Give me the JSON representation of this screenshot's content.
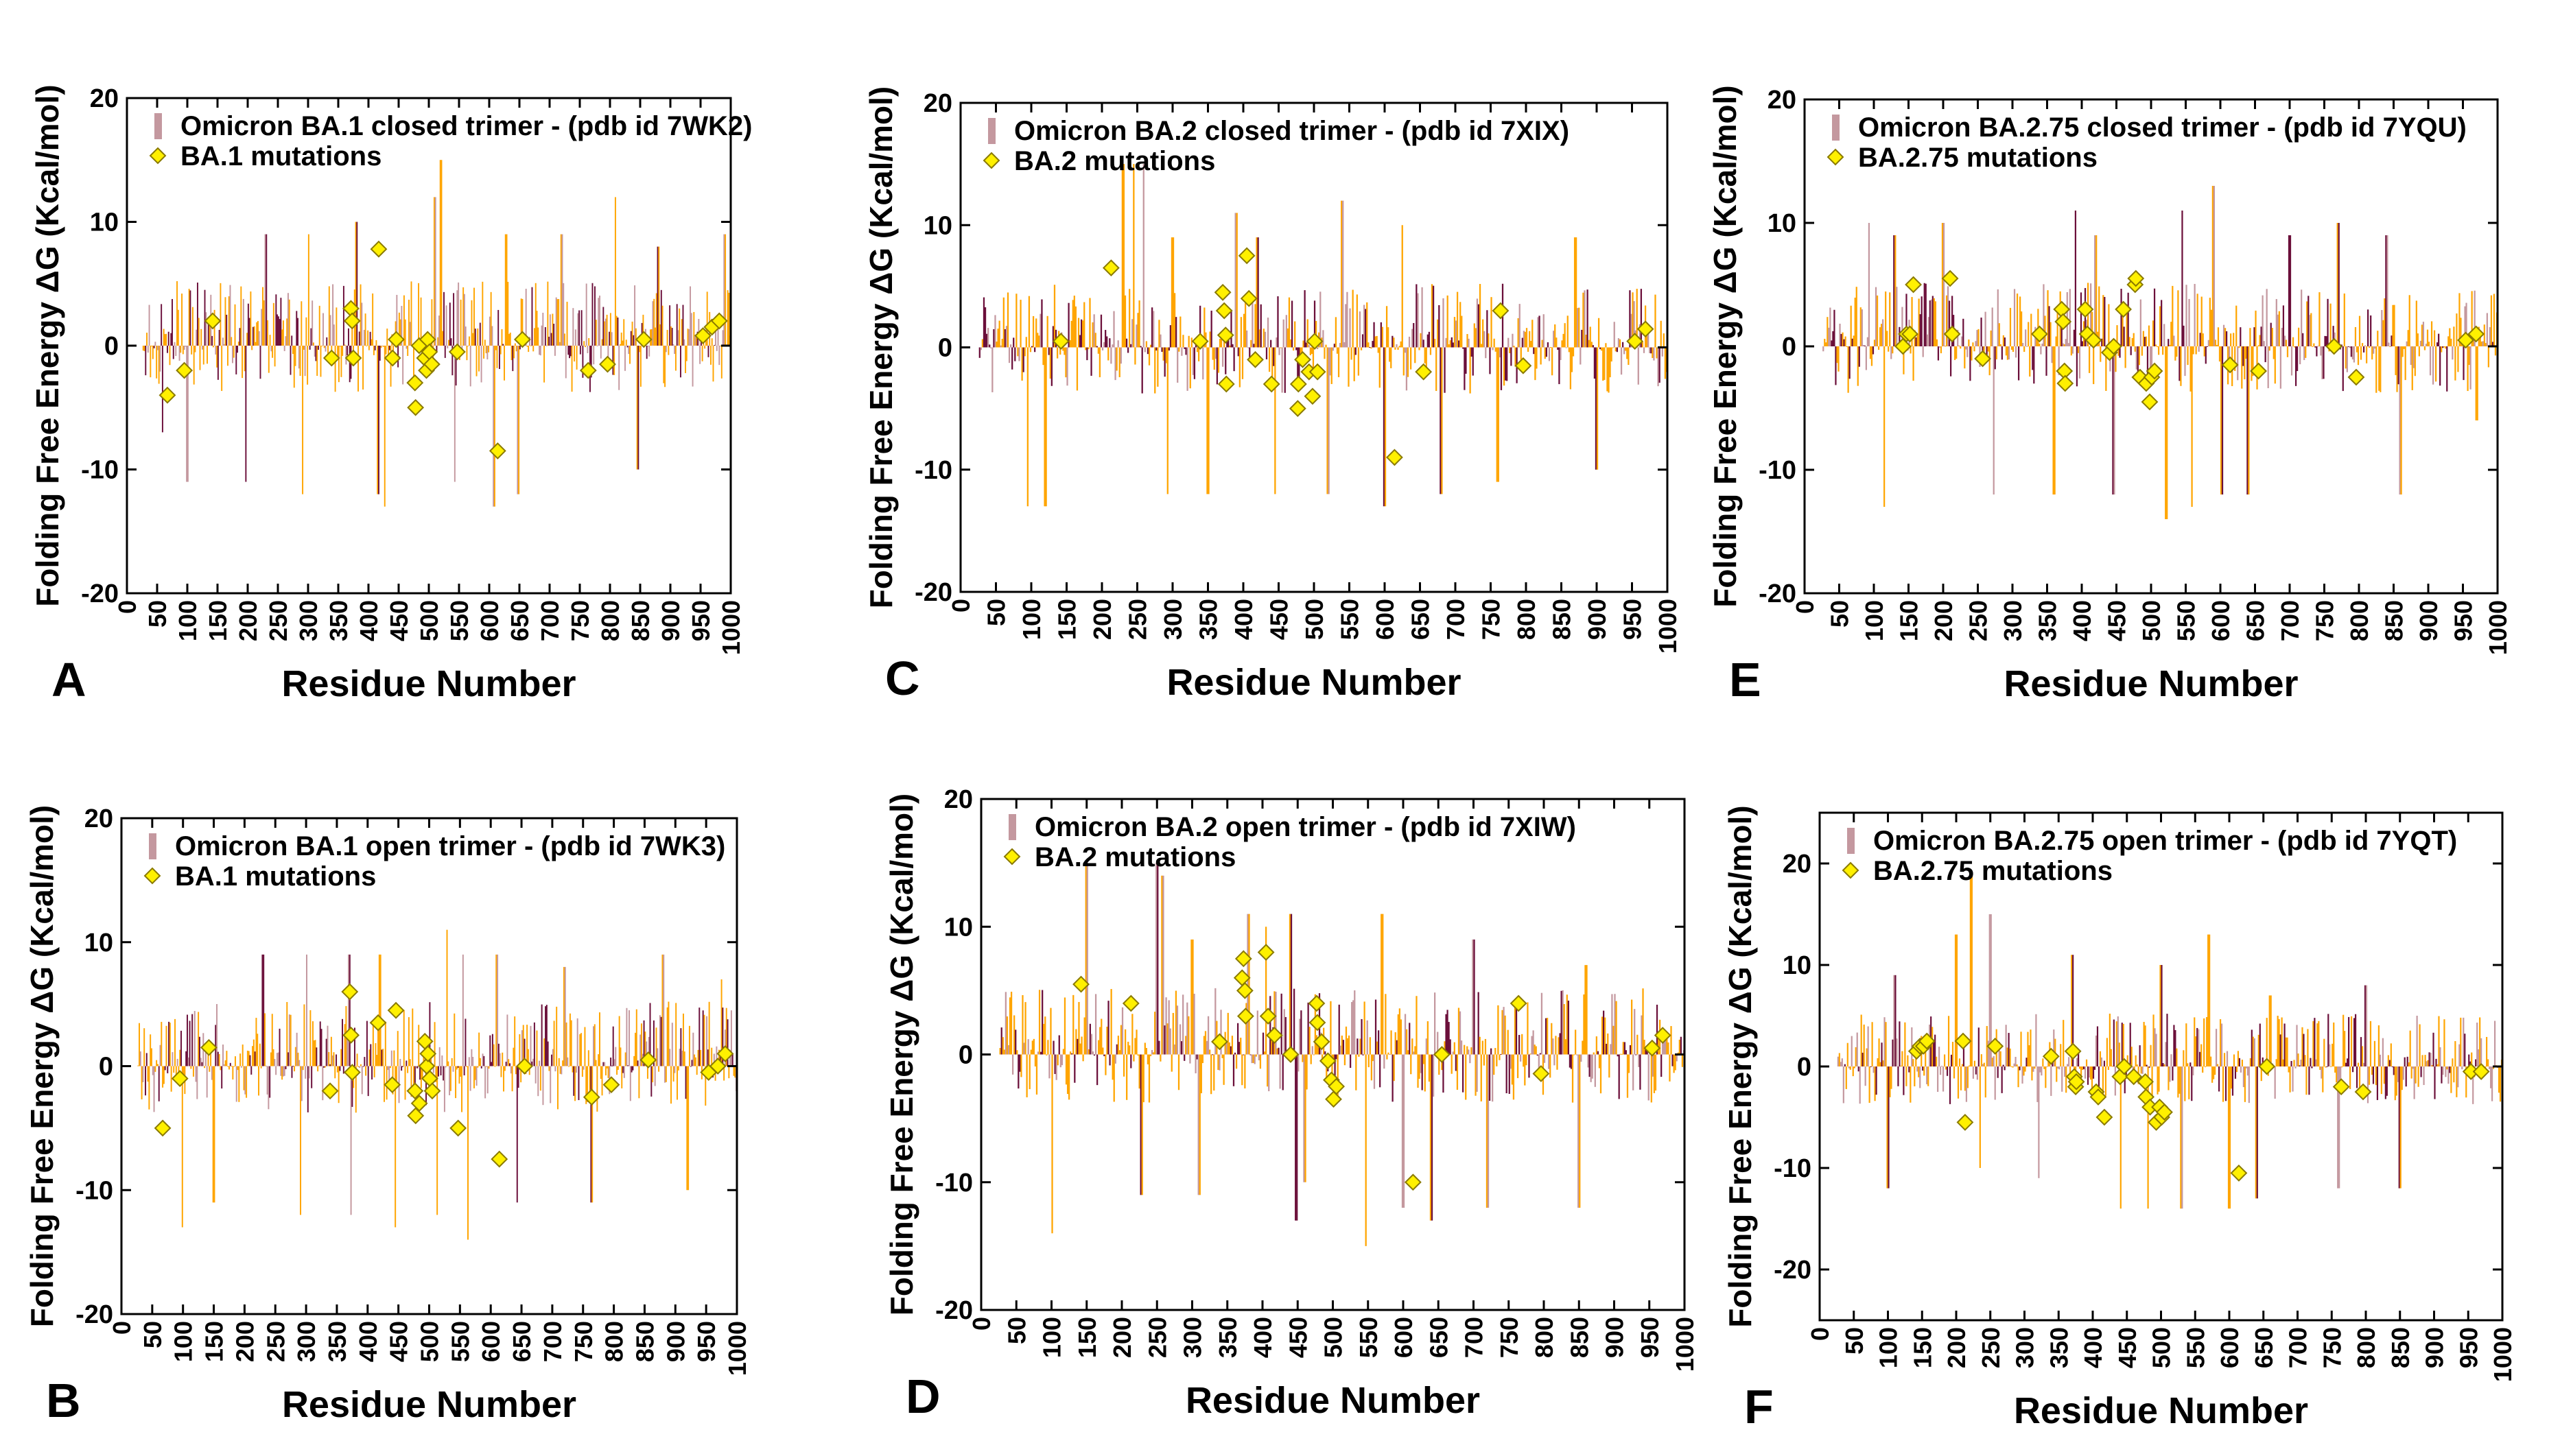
{
  "figure": {
    "xlabel": "Residue Number",
    "ylabel": "Folding  Free Energy ΔG (Kcal/mol)",
    "xticks": [
      "0",
      "50",
      "100",
      "150",
      "200",
      "250",
      "300",
      "350",
      "400",
      "450",
      "500",
      "550",
      "600",
      "650",
      "700",
      "750",
      "800",
      "850",
      "900",
      "950",
      "1000"
    ],
    "yticks": [
      "20",
      "10",
      "0",
      "-10",
      "-20"
    ],
    "colors": {
      "series": "#C4989F",
      "stroke": "#FFA500",
      "dark": "#6B0F3A",
      "marker": "#FFF000",
      "marker_edge": "#8A7A00",
      "axes": "#000000"
    }
  },
  "chart_data": [
    {
      "panel_letter": "A",
      "type": "bar",
      "title": "Omicron BA.1 closed trimer - (pdb id 7WK2)",
      "series": [
        {
          "name": "Omicron BA.1 closed trimer - (pdb id 7WK2)",
          "kind": "bar",
          "x_range": [
            27,
            1000
          ],
          "peaks": [
            [
              230,
              9
            ],
            [
              301,
              9
            ],
            [
              380,
              10
            ],
            [
              510,
              12
            ],
            [
              520,
              15
            ],
            [
              628,
              9
            ],
            [
              720,
              9
            ],
            [
              809,
              12
            ],
            [
              880,
              8
            ],
            [
              990,
              9
            ]
          ],
          "troughs": [
            [
              59,
              -7
            ],
            [
              100,
              -11
            ],
            [
              197,
              -11
            ],
            [
              291,
              -12
            ],
            [
              416,
              -12
            ],
            [
              427,
              -13
            ],
            [
              543,
              -11
            ],
            [
              608,
              -13
            ],
            [
              648,
              -12
            ],
            [
              846,
              -10
            ]
          ]
        },
        {
          "name": "BA.1 mutations",
          "kind": "marker",
          "x": [
            67,
            95,
            142,
            339,
            371,
            373,
            375,
            417,
            440,
            446,
            477,
            478,
            484,
            493,
            496,
            498,
            501,
            505,
            547,
            614,
            655,
            764,
            796,
            856,
            954,
            969,
            981
          ],
          "y": [
            -4,
            -2,
            2,
            -1,
            3,
            2,
            -1,
            7.8,
            -1,
            0.5,
            -3,
            -5,
            0,
            -1,
            -2,
            0.5,
            -0.5,
            -1.5,
            -0.5,
            -8.5,
            0.5,
            -2,
            -1.5,
            0.5,
            0.8,
            1.5,
            2
          ]
        }
      ],
      "xlabel": "Residue Number",
      "ylabel": "Folding  Free Energy ΔG (Kcal/mol)",
      "xlim": [
        0,
        1000
      ],
      "ylim": [
        -20,
        20
      ],
      "legend": "top-left"
    },
    {
      "panel_letter": "C",
      "type": "bar",
      "title": "Omicron BA.2 closed trimer - (pdb id 7XIX)",
      "series": [
        {
          "name": "Omicron BA.2 closed trimer - (pdb id 7XIX)",
          "kind": "bar",
          "x_range": [
            27,
            1000
          ],
          "peaks": [
            [
              230,
              15
            ],
            [
              245,
              15
            ],
            [
              259,
              15
            ],
            [
              300,
              9
            ],
            [
              390,
              11
            ],
            [
              420,
              9
            ],
            [
              520,
              12
            ],
            [
              540,
              12
            ],
            [
              625,
              10
            ],
            [
              870,
              9
            ]
          ],
          "troughs": [
            [
              95,
              -13
            ],
            [
              120,
              -13
            ],
            [
              293,
              -12
            ],
            [
              350,
              -12
            ],
            [
              445,
              -12
            ],
            [
              520,
              -12
            ],
            [
              600,
              -13
            ],
            [
              680,
              -12
            ],
            [
              760,
              -11
            ],
            [
              900,
              -10
            ]
          ]
        },
        {
          "name": "BA.2 mutations",
          "kind": "marker",
          "x": [
            142,
            213,
            339,
            371,
            373,
            375,
            376,
            405,
            408,
            417,
            440,
            477,
            478,
            484,
            493,
            498,
            501,
            505,
            614,
            655,
            764,
            796,
            954,
            969
          ],
          "y": [
            0.5,
            6.5,
            0.5,
            4.5,
            3,
            1,
            -3,
            7.5,
            4,
            -1,
            -3,
            -5,
            -3,
            -1,
            -2,
            -4,
            0.5,
            -2,
            -9,
            -2,
            3,
            -1.5,
            0.5,
            1.5
          ]
        }
      ],
      "xlabel": "Residue Number",
      "ylabel": "Folding  Free Energy ΔG (Kcal/mol)",
      "xlim": [
        0,
        1000
      ],
      "ylim": [
        -20,
        20
      ],
      "legend": "top-left"
    },
    {
      "panel_letter": "E",
      "type": "bar",
      "title": "Omicron BA.2.75 closed trimer - (pdb id 7YQU)",
      "series": [
        {
          "name": "Omicron BA.2.75 closed trimer - (pdb id 7YQU)",
          "kind": "bar",
          "x_range": [
            27,
            1000
          ],
          "peaks": [
            [
              93,
              10
            ],
            [
              130,
              9
            ],
            [
              200,
              10
            ],
            [
              391,
              11
            ],
            [
              420,
              9
            ],
            [
              545,
              11
            ],
            [
              590,
              13
            ],
            [
              700,
              9
            ],
            [
              770,
              10
            ],
            [
              840,
              9
            ]
          ],
          "troughs": [
            [
              115,
              -13
            ],
            [
              273,
              -12
            ],
            [
              360,
              -12
            ],
            [
              446,
              -12
            ],
            [
              522,
              -14
            ],
            [
              559,
              -13
            ],
            [
              602,
              -12
            ],
            [
              640,
              -12
            ],
            [
              860,
              -12
            ],
            [
              970,
              -6
            ]
          ]
        },
        {
          "name": "BA.2.75 mutations",
          "kind": "marker",
          "x": [
            142,
            147,
            152,
            157,
            210,
            213,
            257,
            339,
            371,
            373,
            375,
            376,
            405,
            408,
            417,
            440,
            446,
            460,
            477,
            478,
            484,
            493,
            498,
            501,
            505,
            614,
            655,
            764,
            796,
            954,
            969
          ],
          "y": [
            0,
            1,
            1,
            5,
            5.5,
            1,
            -1,
            1,
            3,
            2,
            -2,
            -3,
            3,
            1,
            0.5,
            -0.5,
            0,
            3,
            5,
            5.5,
            -2.5,
            -3,
            -4.5,
            -2.5,
            -2,
            -1.5,
            -2,
            0,
            -2.5,
            0.5,
            1
          ]
        }
      ],
      "xlabel": "Residue Number",
      "ylabel": "Folding  Free Energy ΔG (Kcal/mol)",
      "xlim": [
        0,
        1000
      ],
      "ylim": [
        -20,
        20
      ],
      "legend": "top-left"
    },
    {
      "panel_letter": "B",
      "type": "bar",
      "title": "Omicron BA.1 open trimer - (pdb id 7WK3)",
      "series": [
        {
          "name": "Omicron BA.1 open trimer - (pdb id 7WK3)",
          "kind": "bar",
          "x_range": [
            27,
            1000
          ],
          "peaks": [
            [
              230,
              9
            ],
            [
              301,
              9
            ],
            [
              370,
              9
            ],
            [
              420,
              9
            ],
            [
              529,
              11
            ],
            [
              555,
              9
            ],
            [
              610,
              9
            ],
            [
              720,
              8
            ],
            [
              880,
              9
            ],
            [
              975,
              7
            ]
          ],
          "troughs": [
            [
              99,
              -13
            ],
            [
              150,
              -11
            ],
            [
              291,
              -12
            ],
            [
              373,
              -12
            ],
            [
              445,
              -13
            ],
            [
              513,
              -12
            ],
            [
              563,
              -14
            ],
            [
              643,
              -11
            ],
            [
              764,
              -11
            ],
            [
              920,
              -10
            ]
          ]
        },
        {
          "name": "BA.1 mutations",
          "kind": "marker",
          "x": [
            67,
            95,
            142,
            339,
            371,
            373,
            375,
            417,
            440,
            446,
            477,
            478,
            484,
            493,
            496,
            498,
            501,
            505,
            547,
            614,
            655,
            764,
            796,
            856,
            954,
            969,
            981
          ],
          "y": [
            -5,
            -1,
            1.5,
            -2,
            6,
            2.5,
            -0.5,
            3.5,
            -1.5,
            4.5,
            -2,
            -4,
            -3,
            2,
            0,
            1,
            -1,
            -2,
            -5,
            -7.5,
            0,
            -2.5,
            -1.5,
            0.5,
            -0.5,
            0,
            1
          ]
        }
      ],
      "xlabel": "Residue Number",
      "ylabel": "Folding  Free Energy ΔG (Kcal/mol)",
      "xlim": [
        0,
        1000
      ],
      "ylim": [
        -20,
        20
      ],
      "legend": "top-left"
    },
    {
      "panel_letter": "D",
      "type": "bar",
      "title": "Omicron BA.2 open trimer - (pdb id 7XIW)",
      "series": [
        {
          "name": "Omicron BA.2 open trimer - (pdb id 7XIW)",
          "kind": "bar",
          "x_range": [
            27,
            1000
          ],
          "peaks": [
            [
              150,
              15
            ],
            [
              250,
              15
            ],
            [
              258,
              14
            ],
            [
              300,
              9
            ],
            [
              380,
              11
            ],
            [
              405,
              10
            ],
            [
              440,
              11
            ],
            [
              570,
              11
            ],
            [
              700,
              9
            ],
            [
              860,
              7
            ]
          ],
          "troughs": [
            [
              101,
              -14
            ],
            [
              228,
              -11
            ],
            [
              310,
              -11
            ],
            [
              448,
              -13
            ],
            [
              460,
              -10
            ],
            [
              547,
              -15
            ],
            [
              600,
              -12
            ],
            [
              640,
              -13
            ],
            [
              720,
              -12
            ],
            [
              850,
              -12
            ]
          ]
        },
        {
          "name": "BA.2 mutations",
          "kind": "marker",
          "x": [
            142,
            213,
            339,
            371,
            373,
            375,
            376,
            405,
            408,
            417,
            440,
            477,
            478,
            484,
            493,
            498,
            501,
            505,
            614,
            655,
            764,
            796,
            954,
            969
          ],
          "y": [
            5.5,
            4,
            1,
            6,
            7.5,
            5,
            3,
            8,
            3,
            1.5,
            0,
            4,
            2.5,
            1,
            -0.5,
            -2,
            -3.5,
            -2.5,
            -10,
            0,
            4,
            -1.5,
            0.5,
            1.5
          ]
        }
      ],
      "xlabel": "Residue Number",
      "ylabel": "Folding  Free Energy ΔG (Kcal/mol)",
      "xlim": [
        0,
        1000
      ],
      "ylim": [
        -20,
        20
      ],
      "legend": "top-left"
    },
    {
      "panel_letter": "F",
      "type": "bar",
      "title": "Omicron BA.2.75 open trimer - (pdb id 7YQT)",
      "series": [
        {
          "name": "Omicron BA.2.75 open trimer - (pdb id 7YQT)",
          "kind": "bar",
          "x_range": [
            27,
            1000
          ],
          "peaks": [
            [
              110,
              9
            ],
            [
              200,
              13
            ],
            [
              222,
              19
            ],
            [
              235,
              16
            ],
            [
              250,
              15
            ],
            [
              370,
              11
            ],
            [
              500,
              10
            ],
            [
              570,
              13
            ],
            [
              660,
              7
            ],
            [
              800,
              8
            ]
          ],
          "troughs": [
            [
              100,
              -12
            ],
            [
              235,
              -10
            ],
            [
              321,
              -11
            ],
            [
              441,
              -14
            ],
            [
              481,
              -14
            ],
            [
              530,
              -14
            ],
            [
              600,
              -14
            ],
            [
              640,
              -13
            ],
            [
              760,
              -12
            ],
            [
              850,
              -12
            ]
          ]
        },
        {
          "name": "BA.2.75 mutations",
          "kind": "marker",
          "x": [
            142,
            147,
            152,
            157,
            210,
            213,
            257,
            339,
            371,
            373,
            375,
            376,
            405,
            408,
            417,
            440,
            446,
            460,
            477,
            478,
            484,
            493,
            498,
            501,
            505,
            614,
            655,
            764,
            796,
            954,
            969
          ],
          "y": [
            1.5,
            2,
            2,
            2.5,
            2.5,
            -5.5,
            2,
            1,
            1.5,
            -1,
            -2,
            -1.5,
            -2.5,
            -3,
            -5,
            -1,
            0,
            -1,
            -1.5,
            -3,
            -4,
            -5.5,
            -4,
            -5,
            -4.5,
            -10.5,
            0,
            -2,
            -2.5,
            -0.5,
            -0.5
          ]
        }
      ],
      "xlabel": "Residue Number",
      "ylabel": "Folding  Free Energy ΔG (Kcal/mol)",
      "xlim": [
        0,
        1000
      ],
      "ylim": [
        -25,
        25
      ],
      "yticks": [
        "20",
        "10",
        "0",
        "-10",
        "-20"
      ],
      "legend": "top-left"
    }
  ]
}
